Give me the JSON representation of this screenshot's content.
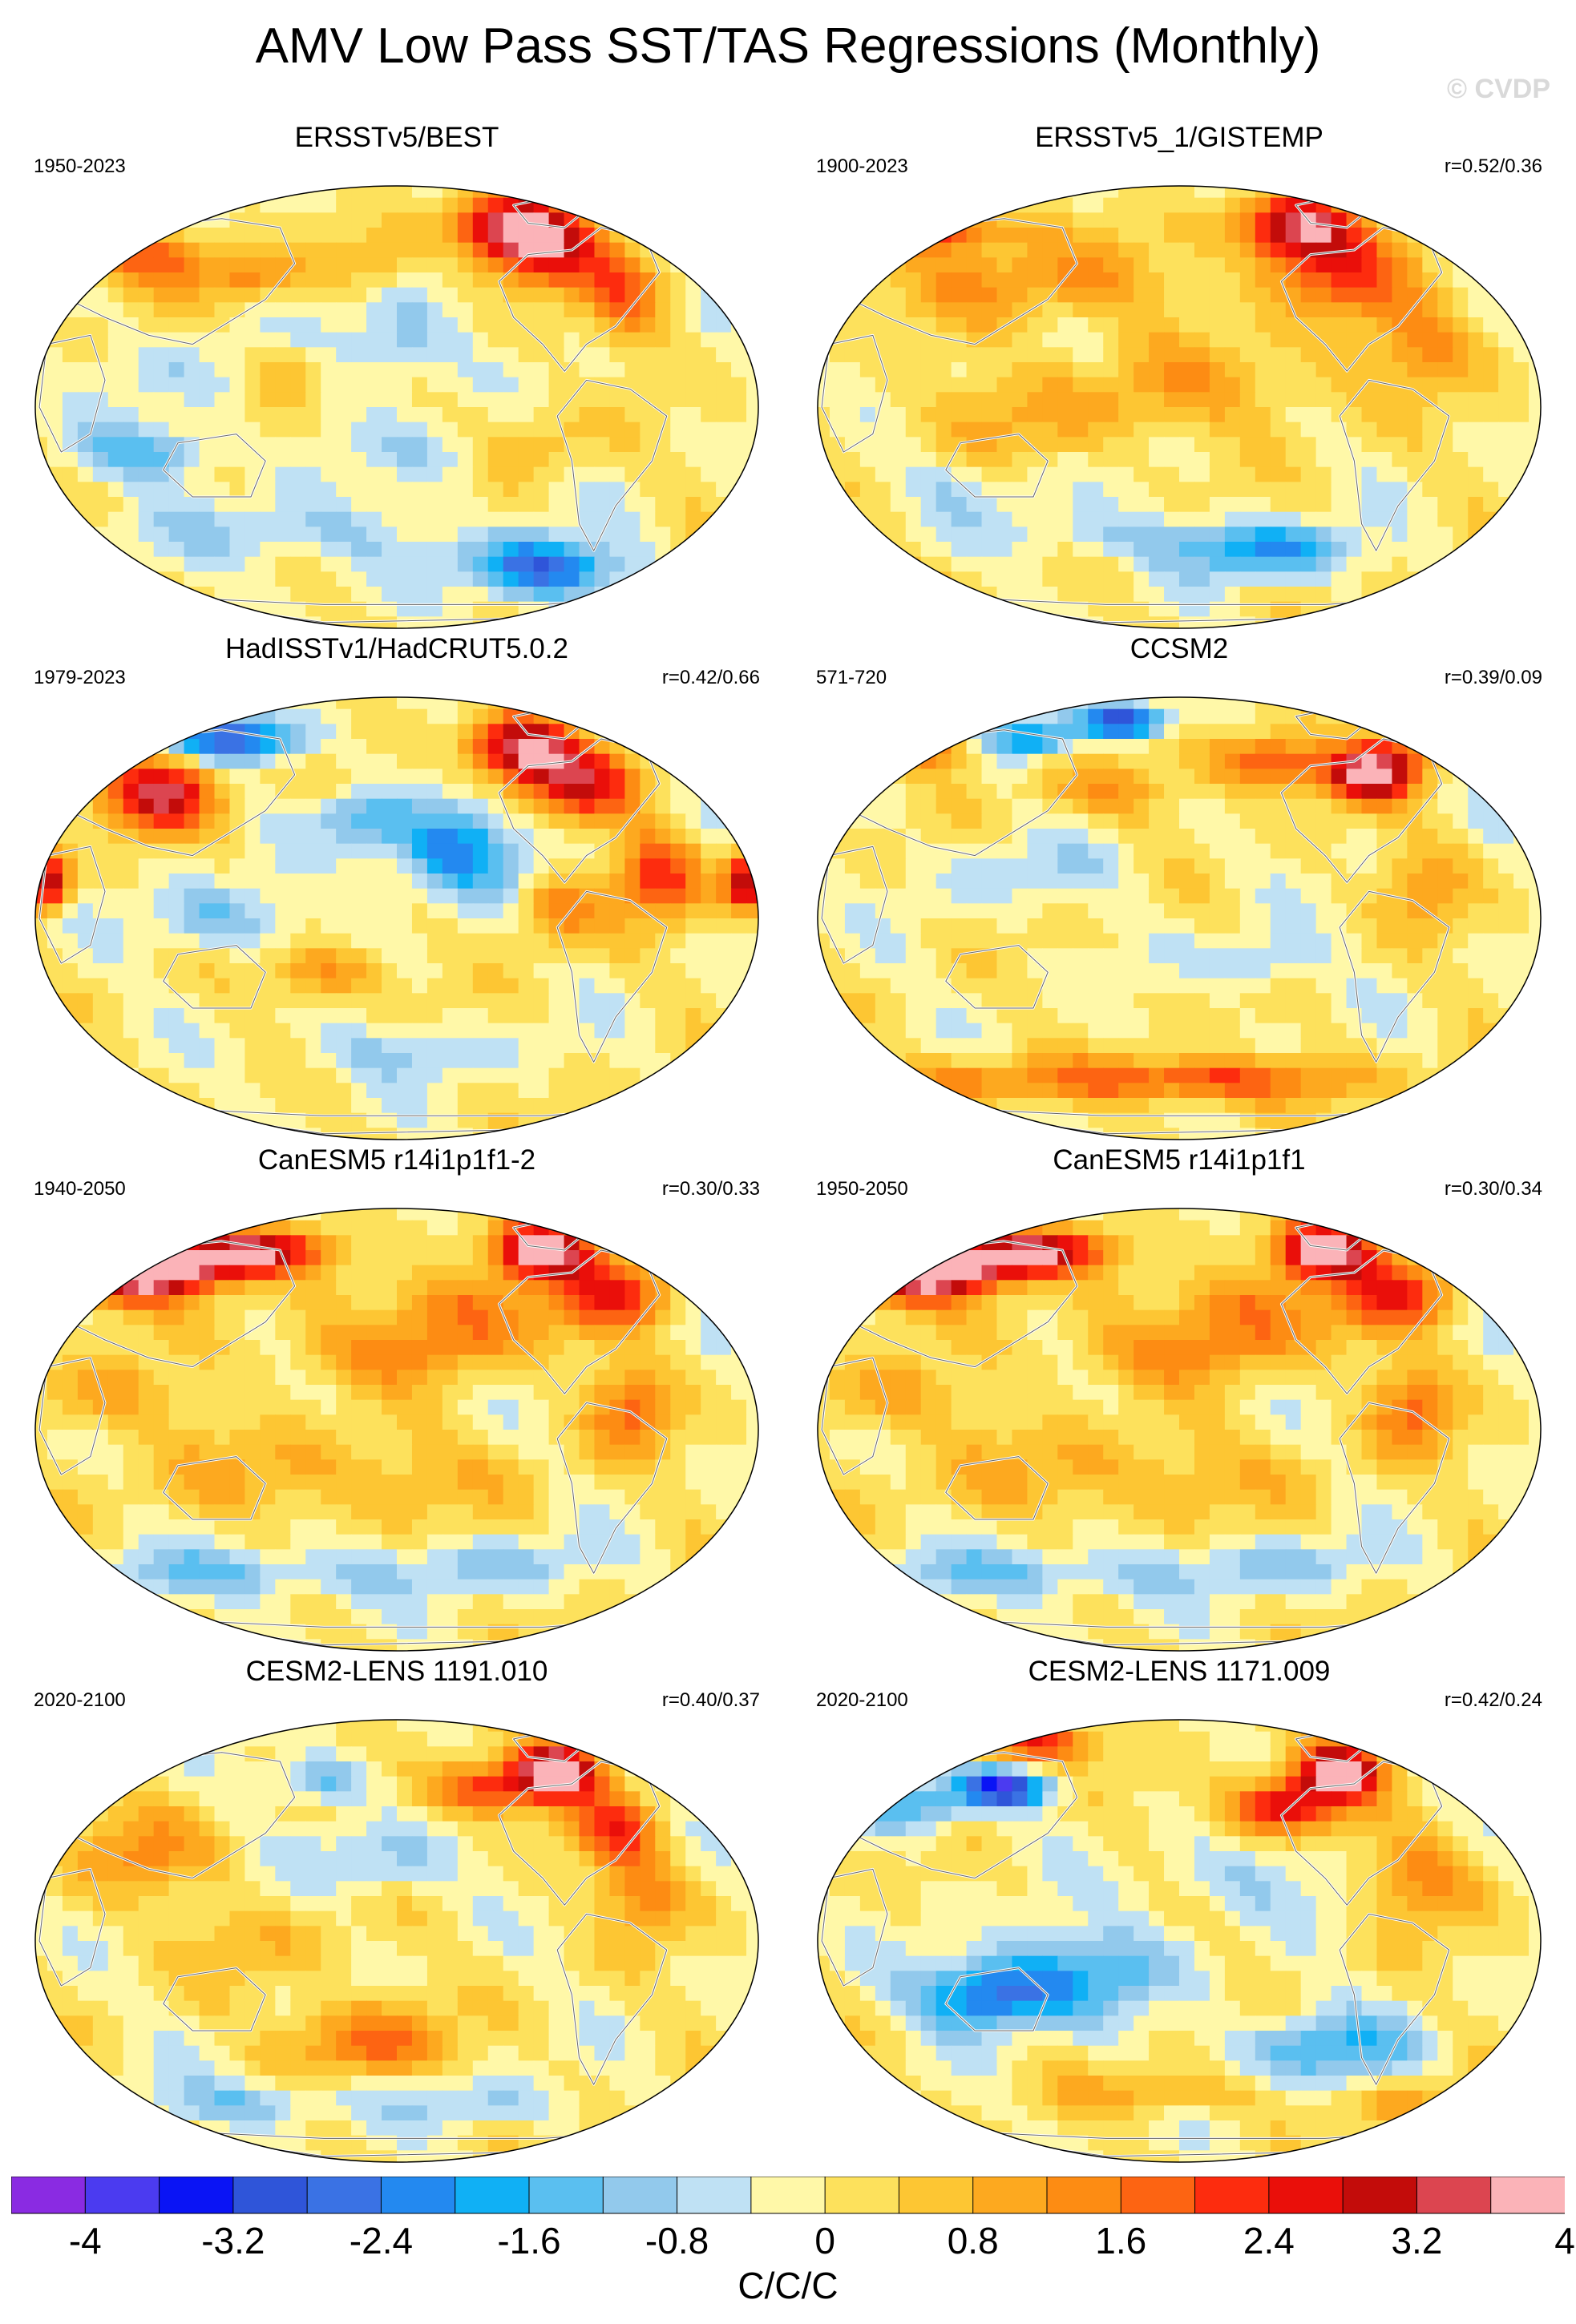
{
  "title": "AMV Low Pass SST/TAS Regressions (Monthly)",
  "watermark": "© CVDP",
  "panels": [
    {
      "title": "ERSSTv5/BEST",
      "years": "1950-2023",
      "corr": "",
      "pattern": "obs-best"
    },
    {
      "title": "ERSSTv5_1/GISTEMP",
      "years": "1900-2023",
      "corr": "r=0.52/0.36",
      "pattern": "obs-gistemp"
    },
    {
      "title": "HadISSTv1/HadCRUT5.0.2",
      "years": "1979-2023",
      "corr": "r=0.42/0.66",
      "pattern": "hadcrut"
    },
    {
      "title": "CCSM2",
      "years": "571-720",
      "corr": "r=0.39/0.09",
      "pattern": "ccsm2"
    },
    {
      "title": "CanESM5 r14i1p1f1-2",
      "years": "1940-2050",
      "corr": "r=0.30/0.33",
      "pattern": "canesm"
    },
    {
      "title": "CanESM5 r14i1p1f1",
      "years": "1950-2050",
      "corr": "r=0.30/0.34",
      "pattern": "canesm"
    },
    {
      "title": "CESM2-LENS 1191.010",
      "years": "2020-2100",
      "corr": "r=0.40/0.37",
      "pattern": "cesm-a"
    },
    {
      "title": "CESM2-LENS 1171.009",
      "years": "2020-2100",
      "corr": "r=0.42/0.24",
      "pattern": "cesm-b"
    }
  ],
  "chart_data": {
    "type": "heatmap",
    "title": "AMV Low Pass SST/TAS Regressions (Monthly)",
    "projection": "global map, Pacific-centered",
    "colorbar": {
      "label": "C/C/C",
      "levels": [
        -4.4,
        -4,
        -3.6,
        -3.2,
        -2.8,
        -2.4,
        -2,
        -1.6,
        -1.2,
        -0.8,
        -0.4,
        0,
        0.4,
        0.8,
        1.2,
        1.6,
        2,
        2.4,
        2.8,
        3.2,
        3.6,
        4,
        4.4
      ],
      "tick_labels": [
        "-4",
        "-3.2",
        "-2.4",
        "-1.6",
        "-0.8",
        "0",
        "0.8",
        "1.6",
        "2.4",
        "3.2",
        "4"
      ],
      "colors": [
        "#8a2be2",
        "#4b3bf0",
        "#0a14f5",
        "#2f55d9",
        "#3a72e4",
        "#2389f0",
        "#10b0f5",
        "#5abff0",
        "#92c9ec",
        "#bfe1f4",
        "#fff8a8",
        "#fde15c",
        "#fdc633",
        "#fda91f",
        "#fd8c13",
        "#fd6412",
        "#fd2c0e",
        "#ea0f0a",
        "#c30c0a",
        "#dc4550",
        "#fbb3b8"
      ]
    }
  }
}
